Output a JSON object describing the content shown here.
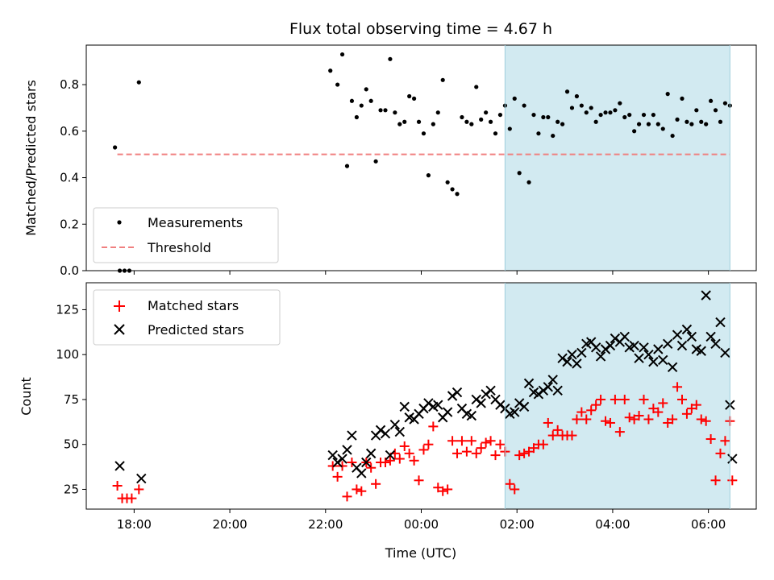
{
  "chart_data": {
    "title": "Flux total observing time = 4.67 h",
    "xlabel": "Time (UTC)",
    "xlim": [
      17.0,
      31.0
    ],
    "x_ticks": [
      {
        "value": 18,
        "label": "18:00"
      },
      {
        "value": 20,
        "label": "20:00"
      },
      {
        "value": 22,
        "label": "22:00"
      },
      {
        "value": 24,
        "label": "00:00"
      },
      {
        "value": 26,
        "label": "02:00"
      },
      {
        "value": 28,
        "label": "04:00"
      },
      {
        "value": 30,
        "label": "06:00"
      }
    ],
    "shaded_span": {
      "x_start": 25.75,
      "x_end": 30.45,
      "color": "#add8e6"
    },
    "panels": [
      {
        "type": "scatter",
        "ylabel": "Matched/Predicted stars",
        "ylim": [
          0.0,
          0.97
        ],
        "y_ticks": [
          "0.0",
          "0.2",
          "0.4",
          "0.6",
          "0.8"
        ],
        "y_tick_values": [
          0.0,
          0.2,
          0.4,
          0.6,
          0.8
        ],
        "legend_position": "lower-left",
        "series": [
          {
            "name": "Measurements",
            "kind": "dot",
            "color": "#000000",
            "x": [
              17.6,
              17.7,
              17.8,
              17.9,
              18.1,
              22.1,
              22.25,
              22.35,
              22.45,
              22.55,
              22.65,
              22.75,
              22.85,
              22.95,
              23.05,
              23.15,
              23.25,
              23.35,
              23.45,
              23.55,
              23.65,
              23.75,
              23.85,
              23.95,
              24.05,
              24.15,
              24.25,
              24.35,
              24.45,
              24.55,
              24.65,
              24.75,
              24.85,
              24.95,
              25.05,
              25.15,
              25.25,
              25.35,
              25.45,
              25.55,
              25.65,
              25.75,
              25.85,
              25.95,
              26.05,
              26.15,
              26.25,
              26.35,
              26.45,
              26.55,
              26.65,
              26.75,
              26.85,
              26.95,
              27.05,
              27.15,
              27.25,
              27.35,
              27.45,
              27.55,
              27.65,
              27.75,
              27.85,
              27.95,
              28.05,
              28.15,
              28.25,
              28.35,
              28.45,
              28.55,
              28.65,
              28.75,
              28.85,
              28.95,
              29.05,
              29.15,
              29.25,
              29.35,
              29.45,
              29.55,
              29.65,
              29.75,
              29.85,
              29.95,
              30.05,
              30.15,
              30.25,
              30.35,
              30.45
            ],
            "y": [
              0.53,
              0.0,
              0.0,
              0.0,
              0.81,
              0.86,
              0.8,
              0.93,
              0.45,
              0.73,
              0.66,
              0.71,
              0.78,
              0.73,
              0.47,
              0.69,
              0.69,
              0.91,
              0.68,
              0.63,
              0.64,
              0.75,
              0.74,
              0.64,
              0.59,
              0.41,
              0.63,
              0.68,
              0.82,
              0.38,
              0.35,
              0.33,
              0.66,
              0.64,
              0.63,
              0.79,
              0.65,
              0.68,
              0.64,
              0.59,
              0.67,
              0.71,
              0.61,
              0.74,
              0.42,
              0.71,
              0.38,
              0.67,
              0.59,
              0.66,
              0.66,
              0.58,
              0.64,
              0.63,
              0.77,
              0.7,
              0.75,
              0.71,
              0.68,
              0.7,
              0.64,
              0.67,
              0.68,
              0.68,
              0.69,
              0.72,
              0.66,
              0.67,
              0.6,
              0.63,
              0.67,
              0.63,
              0.67,
              0.63,
              0.61,
              0.76,
              0.58,
              0.65,
              0.74,
              0.64,
              0.63,
              0.69,
              0.64,
              0.63,
              0.73,
              0.69,
              0.64,
              0.72,
              0.71
            ]
          },
          {
            "name": "Threshold",
            "kind": "dashed-line",
            "color": "#f08080",
            "x": [
              17.65,
              30.45
            ],
            "y": [
              0.5,
              0.5
            ]
          }
        ]
      },
      {
        "type": "scatter",
        "ylabel": "Count",
        "ylim": [
          14.0,
          140.0
        ],
        "y_ticks": [
          "25",
          "50",
          "75",
          "100",
          "125"
        ],
        "y_tick_values": [
          25,
          50,
          75,
          100,
          125
        ],
        "legend_position": "upper-left",
        "series": [
          {
            "name": "Matched stars",
            "kind": "plus",
            "color": "#ff0000",
            "x": [
              17.65,
              17.75,
              17.85,
              17.95,
              18.1,
              22.15,
              22.25,
              22.35,
              22.45,
              22.55,
              22.65,
              22.75,
              22.85,
              22.95,
              23.05,
              23.15,
              23.25,
              23.35,
              23.45,
              23.55,
              23.65,
              23.75,
              23.85,
              23.95,
              24.05,
              24.15,
              24.25,
              24.35,
              24.45,
              24.55,
              24.65,
              24.75,
              24.85,
              24.95,
              25.05,
              25.15,
              25.25,
              25.35,
              25.45,
              25.55,
              25.65,
              25.75,
              25.85,
              25.95,
              26.05,
              26.15,
              26.25,
              26.35,
              26.45,
              26.55,
              26.65,
              26.75,
              26.85,
              26.95,
              27.05,
              27.15,
              27.25,
              27.35,
              27.45,
              27.55,
              27.65,
              27.75,
              27.85,
              27.95,
              28.05,
              28.15,
              28.25,
              28.35,
              28.45,
              28.55,
              28.65,
              28.75,
              28.85,
              28.95,
              29.05,
              29.15,
              29.25,
              29.35,
              29.45,
              29.55,
              29.65,
              29.75,
              29.85,
              29.95,
              30.05,
              30.15,
              30.25,
              30.35,
              30.45,
              30.5
            ],
            "y": [
              27,
              20,
              20,
              20,
              25,
              38,
              32,
              38,
              21,
              40,
              25,
              24,
              40,
              37,
              28,
              40,
              40,
              41,
              45,
              42,
              49,
              45,
              41,
              30,
              47,
              50,
              60,
              26,
              24,
              25,
              52,
              45,
              52,
              46,
              52,
              45,
              48,
              51,
              52,
              44,
              50,
              46,
              28,
              25,
              44,
              45,
              46,
              48,
              50,
              50,
              62,
              55,
              58,
              55,
              55,
              55,
              64,
              68,
              64,
              69,
              72,
              75,
              63,
              62,
              75,
              57,
              75,
              65,
              64,
              66,
              75,
              64,
              70,
              68,
              73,
              62,
              64,
              82,
              75,
              67,
              70,
              72,
              64,
              63,
              53,
              30,
              45,
              52,
              63,
              30
            ]
          },
          {
            "name": "Predicted stars",
            "kind": "cross",
            "color": "#000000",
            "x": [
              17.7,
              18.15,
              22.15,
              22.25,
              22.35,
              22.45,
              22.55,
              22.65,
              22.75,
              22.85,
              22.95,
              23.05,
              23.15,
              23.25,
              23.35,
              23.45,
              23.55,
              23.65,
              23.75,
              23.85,
              23.95,
              24.05,
              24.15,
              24.25,
              24.35,
              24.45,
              24.55,
              24.65,
              24.75,
              24.85,
              24.95,
              25.05,
              25.15,
              25.25,
              25.35,
              25.45,
              25.55,
              25.65,
              25.75,
              25.85,
              25.95,
              26.05,
              26.15,
              26.25,
              26.35,
              26.45,
              26.55,
              26.65,
              26.75,
              26.85,
              26.95,
              27.05,
              27.15,
              27.25,
              27.35,
              27.45,
              27.55,
              27.65,
              27.75,
              27.85,
              27.95,
              28.05,
              28.15,
              28.25,
              28.35,
              28.45,
              28.55,
              28.65,
              28.75,
              28.85,
              28.95,
              29.05,
              29.15,
              29.25,
              29.35,
              29.45,
              29.55,
              29.65,
              29.75,
              29.85,
              29.95,
              30.05,
              30.15,
              30.25,
              30.35,
              30.45,
              30.5
            ],
            "y": [
              38,
              31,
              44,
              40,
              42,
              47,
              55,
              37,
              34,
              40,
              45,
              55,
              58,
              56,
              44,
              61,
              57,
              71,
              65,
              64,
              67,
              70,
              73,
              71,
              72,
              65,
              68,
              77,
              79,
              70,
              67,
              66,
              75,
              73,
              78,
              80,
              75,
              72,
              70,
              67,
              68,
              73,
              71,
              84,
              79,
              78,
              80,
              82,
              86,
              80,
              98,
              96,
              100,
              95,
              101,
              106,
              107,
              104,
              99,
              103,
              105,
              109,
              107,
              110,
              104,
              105,
              98,
              104,
              100,
              96,
              103,
              97,
              106,
              93,
              111,
              105,
              114,
              110,
              103,
              102,
              133,
              110,
              106,
              118,
              101,
              72,
              42
            ]
          }
        ]
      }
    ]
  }
}
